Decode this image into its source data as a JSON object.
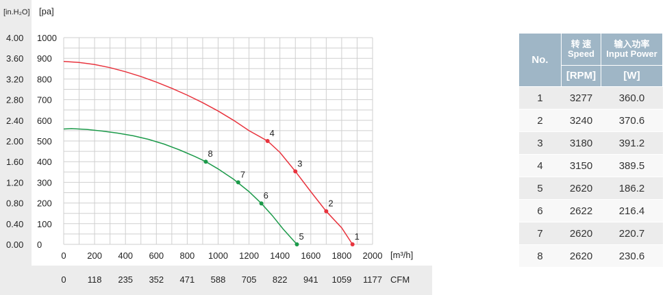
{
  "chart_data": {
    "type": "line",
    "left_axis_unit": "[in.H₂O]",
    "right_axis_unit": "[pa]",
    "x_unit": "[m³/h]",
    "cfm_unit": "CFM",
    "x_ticks": [
      "0",
      "200",
      "400",
      "600",
      "800",
      "1000",
      "1200",
      "1400",
      "1600",
      "1800",
      "2000"
    ],
    "cfm_ticks": [
      "0",
      "118",
      "235",
      "352",
      "471",
      "588",
      "705",
      "822",
      "941",
      "1059",
      "1177"
    ],
    "y_pa_ticks": [
      "0",
      "100",
      "200",
      "300",
      "400",
      "500",
      "600",
      "700",
      "800",
      "900",
      "1000"
    ],
    "y_inh2o_ticks": [
      "0.00",
      "0.40",
      "0.80",
      "1.20",
      "1.60",
      "2.00",
      "2.40",
      "2.80",
      "3.20",
      "3.60",
      "4.00"
    ],
    "xlim": [
      0,
      2000
    ],
    "ylim": [
      0,
      1000
    ],
    "grid": true,
    "series": [
      {
        "color": "#e8333d",
        "curve": [
          [
            0,
            885
          ],
          [
            100,
            880
          ],
          [
            200,
            870
          ],
          [
            300,
            855
          ],
          [
            400,
            835
          ],
          [
            500,
            812
          ],
          [
            600,
            785
          ],
          [
            700,
            755
          ],
          [
            800,
            722
          ],
          [
            900,
            685
          ],
          [
            1000,
            645
          ],
          [
            1100,
            600
          ],
          [
            1200,
            550
          ],
          [
            1320,
            500
          ],
          [
            1400,
            445
          ],
          [
            1500,
            353
          ],
          [
            1600,
            255
          ],
          [
            1700,
            160
          ],
          [
            1800,
            80
          ],
          [
            1870,
            0
          ]
        ],
        "points": [
          {
            "label": "1",
            "x": 1870,
            "y": 0
          },
          {
            "label": "2",
            "x": 1700,
            "y": 160
          },
          {
            "label": "3",
            "x": 1500,
            "y": 353
          },
          {
            "label": "4",
            "x": 1320,
            "y": 500
          }
        ]
      },
      {
        "color": "#1c9a4a",
        "curve": [
          [
            0,
            558
          ],
          [
            50,
            560
          ],
          [
            150,
            556
          ],
          [
            250,
            548
          ],
          [
            350,
            538
          ],
          [
            450,
            525
          ],
          [
            550,
            508
          ],
          [
            650,
            485
          ],
          [
            750,
            457
          ],
          [
            850,
            425
          ],
          [
            920,
            400
          ],
          [
            1000,
            365
          ],
          [
            1100,
            315
          ],
          [
            1200,
            255
          ],
          [
            1280,
            198
          ],
          [
            1350,
            140
          ],
          [
            1420,
            75
          ],
          [
            1510,
            0
          ]
        ],
        "points": [
          {
            "label": "5",
            "x": 1510,
            "y": 0
          },
          {
            "label": "6",
            "x": 1280,
            "y": 198
          },
          {
            "label": "7",
            "x": 1130,
            "y": 300
          },
          {
            "label": "8",
            "x": 920,
            "y": 400
          }
        ]
      }
    ]
  },
  "table": {
    "header": {
      "no": "No.",
      "speed_cn": "转 速",
      "speed_en": "Speed",
      "power_cn": "输入功率",
      "power_en": "Input Power",
      "speed_unit": "[RPM]",
      "power_unit": "[W]"
    },
    "rows": [
      {
        "no": "1",
        "speed": "3277",
        "power": "360.0"
      },
      {
        "no": "2",
        "speed": "3240",
        "power": "370.6"
      },
      {
        "no": "3",
        "speed": "3180",
        "power": "391.2"
      },
      {
        "no": "4",
        "speed": "3150",
        "power": "389.5"
      },
      {
        "no": "5",
        "speed": "2620",
        "power": "186.2"
      },
      {
        "no": "6",
        "speed": "2622",
        "power": "216.4"
      },
      {
        "no": "7",
        "speed": "2620",
        "power": "220.7"
      },
      {
        "no": "8",
        "speed": "2620",
        "power": "230.6"
      }
    ]
  }
}
